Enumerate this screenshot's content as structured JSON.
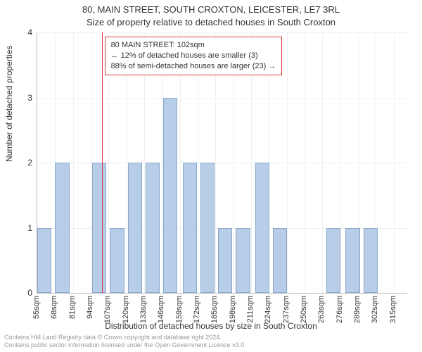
{
  "title_line1": "80, MAIN STREET, SOUTH CROXTON, LEICESTER, LE7 3RL",
  "title_line2": "Size of property relative to detached houses in South Croxton",
  "ylabel": "Number of detached properties",
  "xlabel": "Distribution of detached houses by size in South Croxton",
  "footer_line1": "Contains HM Land Registry data © Crown copyright and database right 2024.",
  "footer_line2": "Contains public sector information licensed under the Open Government Licence v3.0.",
  "annotation": {
    "line1": "80 MAIN STREET: 102sqm",
    "line2": "← 12% of detached houses are smaller (3)",
    "line3": "88% of semi-detached houses are larger (23) →"
  },
  "chart": {
    "type": "bar",
    "ylim": [
      0,
      4
    ],
    "ytick_step": 1,
    "x_start": 55,
    "x_end": 325,
    "x_tick_step": 13,
    "x_unit": "sqm",
    "reference_value": 102,
    "reference_color": "#d93a3a",
    "bar_fill": "#b7cde8",
    "bar_border": "#8aa8cc",
    "grid_color": "#eef1f4",
    "axis_color": "#bbbbbb",
    "background_color": "#ffffff",
    "label_fontsize": 12,
    "title_fontsize": 13,
    "tick_fontsize": 11,
    "bar_width_ratio": 0.8,
    "bars": [
      {
        "bin_start": 55,
        "count": 1
      },
      {
        "bin_start": 68,
        "count": 2
      },
      {
        "bin_start": 81,
        "count": 0
      },
      {
        "bin_start": 95,
        "count": 2
      },
      {
        "bin_start": 108,
        "count": 1
      },
      {
        "bin_start": 121,
        "count": 2
      },
      {
        "bin_start": 134,
        "count": 2
      },
      {
        "bin_start": 147,
        "count": 3
      },
      {
        "bin_start": 161,
        "count": 2
      },
      {
        "bin_start": 174,
        "count": 2
      },
      {
        "bin_start": 187,
        "count": 1
      },
      {
        "bin_start": 200,
        "count": 1
      },
      {
        "bin_start": 214,
        "count": 2
      },
      {
        "bin_start": 227,
        "count": 1
      },
      {
        "bin_start": 240,
        "count": 0
      },
      {
        "bin_start": 253,
        "count": 0
      },
      {
        "bin_start": 266,
        "count": 1
      },
      {
        "bin_start": 280,
        "count": 1
      },
      {
        "bin_start": 293,
        "count": 1
      },
      {
        "bin_start": 306,
        "count": 0
      },
      {
        "bin_start": 319,
        "count": 0
      }
    ]
  }
}
